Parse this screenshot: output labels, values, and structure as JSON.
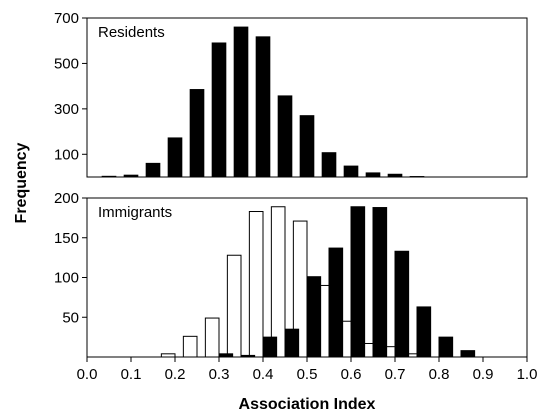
{
  "chart_data": {
    "type": "bar",
    "xlabel": "Association Index",
    "ylabel": "Frequency",
    "xlim": [
      0.0,
      1.0
    ],
    "x_ticks": [
      "0.0",
      "0.1",
      "0.2",
      "0.3",
      "0.4",
      "0.5",
      "0.6",
      "0.7",
      "0.8",
      "0.9",
      "1.0"
    ],
    "panels": [
      {
        "label": "Residents",
        "ylim": [
          0,
          700
        ],
        "y_ticks": [
          "100",
          "300",
          "500",
          "700"
        ],
        "x": [
          0.05,
          0.1,
          0.15,
          0.2,
          0.25,
          0.3,
          0.35,
          0.4,
          0.45,
          0.5,
          0.55,
          0.6,
          0.65,
          0.7,
          0.75
        ],
        "series": [
          {
            "fill": "#000000",
            "values": [
              3,
              8,
              60,
              172,
              385,
              590,
              660,
              617,
              357,
              270,
              107,
              48,
              18,
              12,
              2
            ]
          }
        ]
      },
      {
        "label": "Immigrants",
        "ylim": [
          0,
          200
        ],
        "y_ticks": [
          "50",
          "100",
          "150",
          "200"
        ],
        "x": [
          0.2,
          0.25,
          0.3,
          0.35,
          0.4,
          0.45,
          0.5,
          0.55,
          0.6,
          0.65,
          0.7,
          0.75,
          0.8,
          0.85
        ],
        "series": [
          {
            "fill": "#ffffff",
            "values": [
              4,
              26,
              49,
              128,
              183,
              189,
              171,
              90,
              45,
              17,
              13,
              4,
              0,
              0
            ]
          },
          {
            "fill": "#000000",
            "values": [
              0,
              0,
              4,
              2,
              25,
              35,
              101,
              137,
              189,
              188,
              133,
              63,
              25,
              8
            ]
          }
        ]
      }
    ]
  }
}
